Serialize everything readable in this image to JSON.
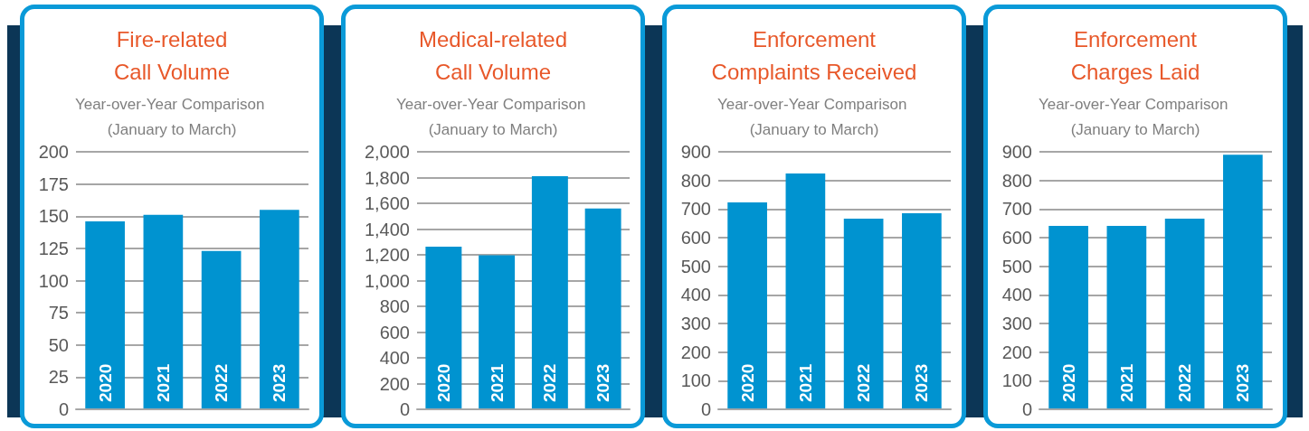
{
  "chart_data": [
    {
      "type": "bar",
      "title": "Fire-related\nCall Volume",
      "subtitle": "Year-over-Year Comparison (January to March)",
      "categories": [
        "2020",
        "2021",
        "2022",
        "2023"
      ],
      "values": [
        146,
        151,
        123,
        155
      ],
      "color": "#0093d0",
      "ylim": [
        0,
        200
      ],
      "yticks": [
        0,
        25,
        50,
        75,
        100,
        125,
        150,
        175,
        200
      ],
      "grid": "y"
    },
    {
      "type": "bar",
      "title": "Medical-related\nCall Volume",
      "subtitle": "Year-over-Year Comparison (January to March)",
      "categories": [
        "2020",
        "2021",
        "2022",
        "2023"
      ],
      "values": [
        1263,
        1196,
        1811,
        1559
      ],
      "color": "#0093d0",
      "ylim": [
        0,
        2000
      ],
      "yticks": [
        0,
        200,
        400,
        600,
        800,
        {
          "value": 1000,
          "label": "1,000"
        },
        {
          "value": 1200,
          "label": "1,200"
        },
        {
          "value": 1400,
          "label": "1,400"
        },
        {
          "value": 1600,
          "label": "1,600"
        },
        {
          "value": 1800,
          "label": "1,800"
        },
        {
          "value": 2000,
          "label": "2,000"
        }
      ],
      "grid": "y"
    },
    {
      "type": "bar",
      "title": "Enforcement\nComplaints Received",
      "subtitle": "Year-over-Year Comparison (January to March)",
      "categories": [
        "2020",
        "2021",
        "2022",
        "2023"
      ],
      "values": [
        723,
        824,
        666,
        685
      ],
      "color": "#0093d0",
      "ylim": [
        0,
        900
      ],
      "yticks": [
        0,
        100,
        200,
        300,
        400,
        500,
        600,
        700,
        800,
        900
      ],
      "grid": "y"
    },
    {
      "type": "bar",
      "title": "Enforcement\nCharges Laid",
      "subtitle": "Year-over-Year Comparison (January to March)",
      "categories": [
        "2020",
        "2021",
        "2022",
        "2023"
      ],
      "values": [
        641,
        641,
        666,
        890
      ],
      "color": "#0093d0",
      "ylim": [
        0,
        900
      ],
      "yticks": [
        0,
        100,
        200,
        300,
        400,
        500,
        600,
        700,
        800,
        900
      ],
      "grid": "y"
    }
  ]
}
